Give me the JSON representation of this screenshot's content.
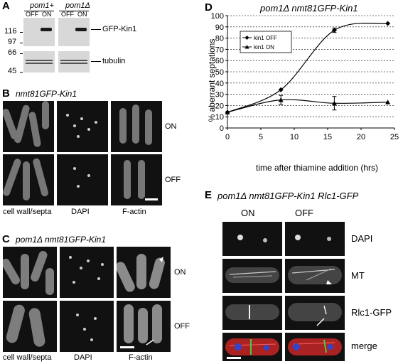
{
  "panelA": {
    "letter": "A",
    "group1": "pom1+",
    "group2": "pom1Δ",
    "lanes": [
      "OFF",
      "ON",
      "OFF",
      "ON"
    ],
    "mw_top": [
      "116",
      "97"
    ],
    "mw_bottom": [
      "66",
      "45"
    ],
    "band1": "GFP-Kin1",
    "band2": "tubulin"
  },
  "panelB": {
    "letter": "B",
    "title": "nmt81GFP-Kin1",
    "row1": "ON",
    "row2": "OFF",
    "col1": "cell wall/septa",
    "col2": "DAPI",
    "col3": "F-actin"
  },
  "panelC": {
    "letter": "C",
    "title": "pom1Δ nmt81GFP-Kin1",
    "row1": "ON",
    "row2": "OFF",
    "col1": "cell wall/septa",
    "col2": "DAPI",
    "col3": "F-actin"
  },
  "panelD": {
    "letter": "D",
    "title": "pom1Δ nmt81GFP-Kin1",
    "ylabel": "% aberrant septations",
    "xlabel": "time after thiamine addition (hrs)",
    "legend1": "kin1 OFF",
    "legend2": "kin1 ON",
    "xticks": [
      "0",
      "5",
      "10",
      "15",
      "20",
      "25"
    ],
    "yticks": [
      "0",
      "10",
      "20",
      "30",
      "40",
      "50",
      "60",
      "70",
      "80",
      "90",
      "100"
    ]
  },
  "panelE": {
    "letter": "E",
    "title": "pom1Δ nmt81GFP-Kin1 Rlc1-GFP",
    "col1": "ON",
    "col2": "OFF",
    "rows": [
      "DAPI",
      "MT",
      "Rlc1-GFP",
      "merge"
    ]
  },
  "chart_data": {
    "type": "line",
    "title": "pom1Δ nmt81GFP-Kin1",
    "xlabel": "time after thiamine addition (hrs)",
    "ylabel": "% aberrant septations",
    "xlim": [
      0,
      25
    ],
    "ylim": [
      0,
      100
    ],
    "grid": "horizontal dotted",
    "legend_position": "top-left",
    "series": [
      {
        "name": "kin1 OFF",
        "marker": "diamond",
        "x": [
          0,
          8,
          16,
          24
        ],
        "y": [
          14,
          34,
          87,
          93
        ],
        "err": [
          0,
          0,
          2,
          0
        ]
      },
      {
        "name": "kin1 ON",
        "marker": "triangle",
        "x": [
          0,
          8,
          16,
          24
        ],
        "y": [
          14,
          25,
          22,
          23
        ],
        "err": [
          0,
          4,
          6,
          0
        ]
      }
    ]
  }
}
